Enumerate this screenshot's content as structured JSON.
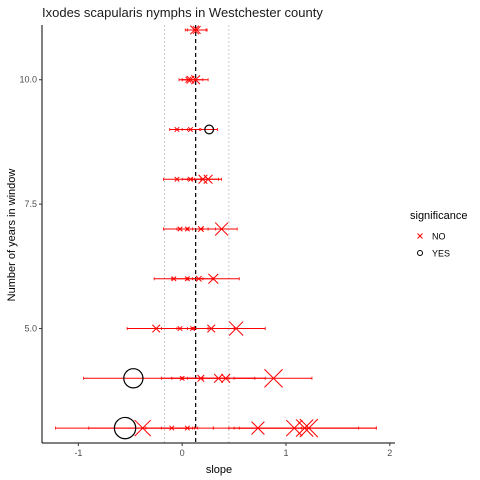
{
  "chart_data": {
    "type": "scatter",
    "title": "Ixodes scapularis nymphs in Westchester county",
    "xlabel": "slope",
    "ylabel": "Number of years in window",
    "xlim": [
      -1.35,
      2.05
    ],
    "ylim": [
      2.7,
      11.1
    ],
    "x_ticks": [
      -1,
      0,
      1,
      2
    ],
    "x_tick_labels": [
      "-1",
      "0",
      "1",
      "2"
    ],
    "y_ticks": [
      5.0,
      7.5,
      10.0
    ],
    "y_tick_labels": [
      "5.0",
      "7.5",
      "10.0"
    ],
    "grid": false,
    "reference_lines": {
      "zero_dashed": 0.13,
      "dotted": [
        -0.17,
        0.45
      ]
    },
    "colors": {
      "NO": "#ff0000",
      "YES": "#000000",
      "errorbar": "#ff0000"
    },
    "legend": {
      "title": "significance",
      "position": "right",
      "entries": [
        {
          "label": "NO",
          "marker": "x",
          "color": "#ff0000"
        },
        {
          "label": "YES",
          "marker": "circle",
          "color": "#000000"
        }
      ]
    },
    "series": [
      {
        "y": 11,
        "points": [
          {
            "x": 0.12,
            "significance": "NO",
            "size": 3,
            "lo": 0.03,
            "hi": 0.23
          },
          {
            "x": 0.14,
            "significance": "NO",
            "size": 2.5,
            "lo": 0.05,
            "hi": 0.24
          }
        ]
      },
      {
        "y": 10,
        "points": [
          {
            "x": 0.08,
            "significance": "NO",
            "size": 2.5,
            "lo": -0.03,
            "hi": 0.2
          },
          {
            "x": 0.13,
            "significance": "NO",
            "size": 3,
            "lo": 0.0,
            "hi": 0.25
          },
          {
            "x": 0.06,
            "significance": "NO",
            "size": 1.5,
            "lo": 0.0,
            "hi": 0.13
          }
        ]
      },
      {
        "y": 9,
        "points": [
          {
            "x": -0.05,
            "significance": "NO",
            "size": 1,
            "lo": -0.12,
            "hi": 0.05
          },
          {
            "x": 0.08,
            "significance": "NO",
            "size": 1,
            "lo": 0.0,
            "hi": 0.17
          },
          {
            "x": 0.26,
            "significance": "YES",
            "size": 3,
            "lo": 0.18,
            "hi": 0.34
          }
        ]
      },
      {
        "y": 8,
        "points": [
          {
            "x": -0.05,
            "significance": "NO",
            "size": 1,
            "lo": -0.18,
            "hi": 0.1
          },
          {
            "x": 0.08,
            "significance": "NO",
            "size": 1,
            "lo": 0.0,
            "hi": 0.18
          },
          {
            "x": 0.2,
            "significance": "NO",
            "size": 3,
            "lo": 0.05,
            "hi": 0.38
          },
          {
            "x": 0.25,
            "significance": "NO",
            "size": 3,
            "lo": 0.12,
            "hi": 0.35
          }
        ]
      },
      {
        "y": 7,
        "points": [
          {
            "x": -0.02,
            "significance": "NO",
            "size": 1,
            "lo": -0.18,
            "hi": 0.1
          },
          {
            "x": 0.05,
            "significance": "NO",
            "size": 1,
            "lo": -0.05,
            "hi": 0.2
          },
          {
            "x": 0.18,
            "significance": "NO",
            "size": 1.5,
            "lo": 0.05,
            "hi": 0.32
          },
          {
            "x": 0.38,
            "significance": "NO",
            "size": 5,
            "lo": 0.25,
            "hi": 0.53
          }
        ]
      },
      {
        "y": 6,
        "points": [
          {
            "x": -0.08,
            "significance": "NO",
            "size": 1,
            "lo": -0.27,
            "hi": 0.05
          },
          {
            "x": 0.05,
            "significance": "NO",
            "size": 1,
            "lo": -0.1,
            "hi": 0.2
          },
          {
            "x": 0.16,
            "significance": "NO",
            "size": 1.5,
            "lo": 0.05,
            "hi": 0.3
          },
          {
            "x": 0.3,
            "significance": "NO",
            "size": 3.5,
            "lo": 0.1,
            "hi": 0.55
          }
        ]
      },
      {
        "y": 5,
        "points": [
          {
            "x": -0.25,
            "significance": "NO",
            "size": 2.5,
            "lo": -0.53,
            "hi": 0.05
          },
          {
            "x": -0.02,
            "significance": "NO",
            "size": 1,
            "lo": -0.2,
            "hi": 0.12
          },
          {
            "x": 0.1,
            "significance": "NO",
            "size": 1,
            "lo": -0.05,
            "hi": 0.25
          },
          {
            "x": 0.28,
            "significance": "NO",
            "size": 2.5,
            "lo": 0.1,
            "hi": 0.5
          },
          {
            "x": 0.52,
            "significance": "NO",
            "size": 5.5,
            "lo": 0.25,
            "hi": 0.8
          }
        ]
      },
      {
        "y": 4,
        "points": [
          {
            "x": -0.47,
            "significance": "YES",
            "size": 8,
            "lo": -0.95,
            "hi": 0.0
          },
          {
            "x": 0.0,
            "significance": "NO",
            "size": 1,
            "lo": -0.2,
            "hi": 0.2
          },
          {
            "x": 0.18,
            "significance": "NO",
            "size": 2,
            "lo": -0.1,
            "hi": 0.45
          },
          {
            "x": 0.35,
            "significance": "NO",
            "size": 3,
            "lo": 0.0,
            "hi": 0.7
          },
          {
            "x": 0.42,
            "significance": "NO",
            "size": 3,
            "lo": 0.05,
            "hi": 0.8
          },
          {
            "x": 0.88,
            "significance": "NO",
            "size": 7.5,
            "lo": 0.5,
            "hi": 1.25
          }
        ]
      },
      {
        "y": 3,
        "points": [
          {
            "x": -0.55,
            "significance": "YES",
            "size": 9,
            "lo": -1.22,
            "hi": 0.12
          },
          {
            "x": -0.38,
            "significance": "NO",
            "size": 6.5,
            "lo": -0.9,
            "hi": 0.1
          },
          {
            "x": -0.1,
            "significance": "NO",
            "size": 1,
            "lo": -0.35,
            "hi": 0.15
          },
          {
            "x": 0.05,
            "significance": "NO",
            "size": 1,
            "lo": -0.2,
            "hi": 0.3
          },
          {
            "x": 0.73,
            "significance": "NO",
            "size": 5,
            "lo": 0.3,
            "hi": 1.15
          },
          {
            "x": 1.08,
            "significance": "NO",
            "size": 6.5,
            "lo": 0.45,
            "hi": 1.7
          },
          {
            "x": 1.18,
            "significance": "NO",
            "size": 7,
            "lo": 0.5,
            "hi": 1.87
          },
          {
            "x": 1.22,
            "significance": "NO",
            "size": 7.5,
            "lo": 0.55,
            "hi": 1.87
          }
        ]
      }
    ]
  }
}
